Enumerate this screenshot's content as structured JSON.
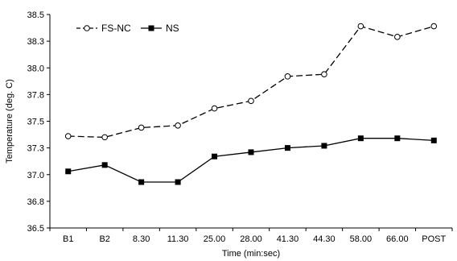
{
  "chart_data": {
    "type": "line",
    "categories": [
      "B1",
      "B2",
      "8.30",
      "11.30",
      "25.00",
      "28.00",
      "41.30",
      "44.30",
      "58.00",
      "66.00",
      "POST"
    ],
    "series": [
      {
        "name": "FS-NC",
        "values": [
          37.36,
          37.35,
          37.44,
          37.46,
          37.62,
          37.69,
          37.92,
          37.94,
          38.39,
          38.29,
          38.39
        ],
        "line_style": "dashed",
        "marker": "open-circle",
        "color": "#000000"
      },
      {
        "name": "NS",
        "values": [
          37.03,
          37.09,
          36.93,
          36.93,
          37.17,
          37.21,
          37.25,
          37.27,
          37.34,
          37.34,
          37.32
        ],
        "line_style": "solid",
        "marker": "filled-square",
        "color": "#000000"
      }
    ],
    "y_ticks": [
      "36.5",
      "36.8",
      "37.0",
      "37.3",
      "37.5",
      "37.8",
      "38.0",
      "38.3",
      "38.5"
    ],
    "ylim": [
      36.5,
      38.5
    ],
    "xlabel": "Time (min:sec)",
    "ylabel": "Temperature (deg. C)",
    "legend_position": "top-left",
    "grid": false
  }
}
